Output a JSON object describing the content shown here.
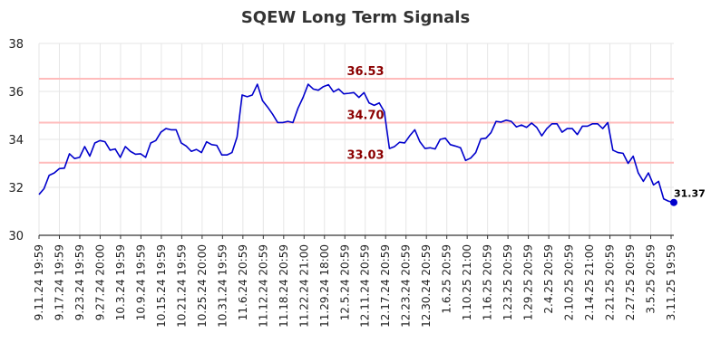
{
  "chart_data": {
    "type": "line",
    "title": "SQEW Long Term Signals",
    "xlabel": "",
    "ylabel": "",
    "ylim": [
      30,
      38
    ],
    "y_ticks": [
      "30",
      "32",
      "34",
      "36",
      "38"
    ],
    "x_tick_labels": [
      "9.11.24 19:59",
      "9.17.24 19:59",
      "9.23.24 19:59",
      "9.27.24 20:00",
      "10.3.24 19:59",
      "10.9.24 19:59",
      "10.15.24 19:59",
      "10.21.24 19:59",
      "10.25.24 20:00",
      "10.31.24 19:59",
      "11.6.24 20:59",
      "11.12.24 20:59",
      "11.18.24 20:59",
      "11.22.24 21:00",
      "11.29.24 18:00",
      "12.5.24 20:59",
      "12.11.24 20:59",
      "12.17.24 20:59",
      "12.23.24 20:59",
      "12.30.24 20:59",
      "1.6.25 20:59",
      "1.10.25 21:00",
      "1.16.25 20:59",
      "1.23.25 20:59",
      "1.29.25 20:59",
      "2.4.25 20:59",
      "2.10.25 20:59",
      "2.14.25 21:00",
      "2.21.25 20:59",
      "2.27.25 20:59",
      "3.5.25 20:59",
      "3.11.25 19:59"
    ],
    "grid": true,
    "line_color": "#0000cc",
    "series": [
      {
        "values": [
          31.7,
          31.95,
          32.5,
          32.6,
          32.78,
          32.8,
          33.4,
          33.2,
          33.25,
          33.7,
          33.3,
          33.85,
          33.95,
          33.9,
          33.55,
          33.6,
          33.25,
          33.7,
          33.5,
          33.38,
          33.4,
          33.25,
          33.85,
          33.95,
          34.3,
          34.45,
          34.4,
          34.4,
          33.85,
          33.72,
          33.5,
          33.58,
          33.45,
          33.9,
          33.78,
          33.75,
          33.35,
          33.35,
          33.45,
          34.1,
          35.85,
          35.78,
          35.85,
          36.3,
          35.62,
          35.35,
          35.05,
          34.7,
          34.7,
          34.75,
          34.7,
          35.3,
          35.75,
          36.3,
          36.1,
          36.05,
          36.2,
          36.28,
          35.98,
          36.1,
          35.9,
          35.92,
          35.95,
          35.75,
          35.95,
          35.52,
          35.42,
          35.52,
          35.15,
          33.62,
          33.7,
          33.88,
          33.85,
          34.15,
          34.4,
          33.9,
          33.62,
          33.65,
          33.6,
          34.0,
          34.05,
          33.78,
          33.72,
          33.65,
          33.12,
          33.22,
          33.45,
          34.02,
          34.05,
          34.28,
          34.75,
          34.72,
          34.8,
          34.75,
          34.52,
          34.6,
          34.5,
          34.68,
          34.5,
          34.15,
          34.45,
          34.65,
          34.65,
          34.3,
          34.45,
          34.45,
          34.2,
          34.55,
          34.55,
          34.65,
          34.65,
          34.45,
          34.7,
          33.55,
          33.45,
          33.42,
          33.0,
          33.3,
          32.6,
          32.25,
          32.6,
          32.1,
          32.25,
          31.52,
          31.42,
          31.37
        ]
      }
    ],
    "horizontal_lines": [
      {
        "value": 36.53,
        "label": "36.53",
        "color": "#ffbbbb",
        "label_color": "#8b0000"
      },
      {
        "value": 34.7,
        "label": "34.70",
        "color": "#ffbbbb",
        "label_color": "#8b0000"
      },
      {
        "value": 33.03,
        "label": "33.03",
        "color": "#ffbbbb",
        "label_color": "#8b0000"
      }
    ],
    "last_point_label": "31.37"
  }
}
